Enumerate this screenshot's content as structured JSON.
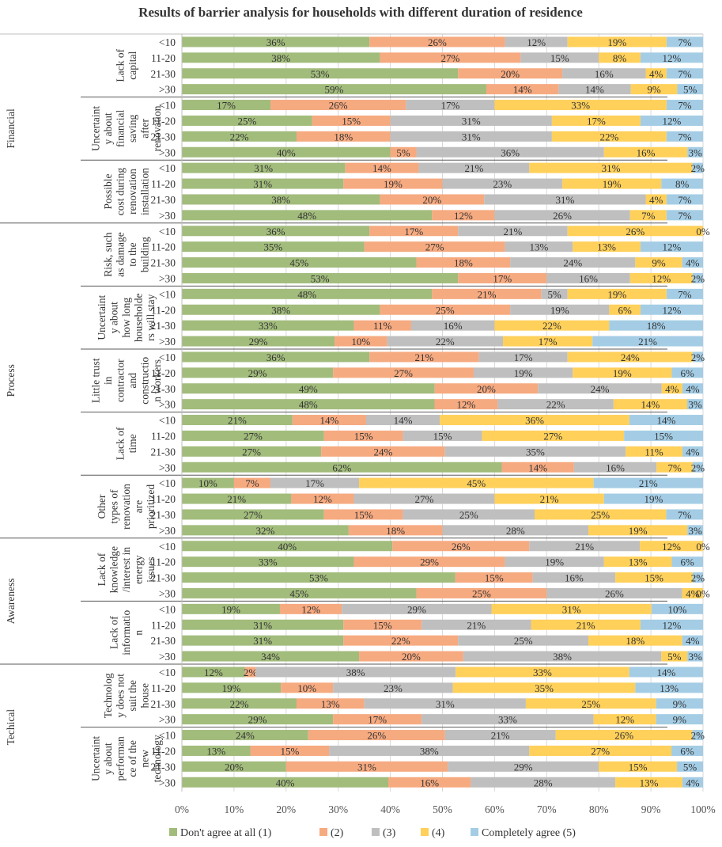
{
  "chart_data": {
    "type": "bar",
    "orientation": "horizontal-stacked-100",
    "title": "Results of barrier analysis for households with different duration of residence",
    "groups": [
      {
        "name": "Financial",
        "barriers": [
          {
            "label": "Lack of capital",
            "lines": [
              "Lack of",
              "capital"
            ],
            "rows": [
              {
                "cat": "<10",
                "values": [
                  36,
                  26,
                  12,
                  19,
                  7
                ]
              },
              {
                "cat": "11-20",
                "values": [
                  38,
                  27,
                  15,
                  8,
                  12
                ]
              },
              {
                "cat": "21-30",
                "values": [
                  53,
                  20,
                  16,
                  4,
                  7
                ]
              },
              {
                "cat": ">30",
                "values": [
                  59,
                  14,
                  14,
                  9,
                  5
                ]
              }
            ]
          },
          {
            "label": "Uncertainty about financial saving after renovation",
            "lines": [
              "Uncertaint",
              "y about",
              "financial",
              "saving",
              "after",
              "renovation"
            ],
            "rows": [
              {
                "cat": "<10",
                "values": [
                  17,
                  26,
                  17,
                  33,
                  7
                ]
              },
              {
                "cat": "11-20",
                "values": [
                  25,
                  15,
                  31,
                  17,
                  12
                ]
              },
              {
                "cat": "21-30",
                "values": [
                  22,
                  18,
                  31,
                  22,
                  7
                ]
              },
              {
                "cat": ">30",
                "values": [
                  40,
                  5,
                  36,
                  16,
                  3
                ]
              }
            ]
          },
          {
            "label": "Possible cost during renovation/installation",
            "lines": [
              "Possible",
              "cost during",
              "renovation",
              "installation"
            ],
            "rows": [
              {
                "cat": "<10",
                "values": [
                  31,
                  14,
                  21,
                  31,
                  2
                ]
              },
              {
                "cat": "11-20",
                "values": [
                  31,
                  19,
                  23,
                  19,
                  8
                ]
              },
              {
                "cat": "21-30",
                "values": [
                  38,
                  20,
                  31,
                  4,
                  7
                ]
              },
              {
                "cat": ">30",
                "values": [
                  48,
                  12,
                  26,
                  7,
                  7
                ]
              }
            ]
          }
        ]
      },
      {
        "name": "Process",
        "barriers": [
          {
            "label": "Risk, such as damage to the building",
            "lines": [
              "Risk, such",
              "as damage",
              "to the",
              "building"
            ],
            "rows": [
              {
                "cat": "<10",
                "values": [
                  36,
                  17,
                  21,
                  26,
                  0
                ]
              },
              {
                "cat": "11-20",
                "values": [
                  35,
                  27,
                  13,
                  13,
                  12
                ]
              },
              {
                "cat": "21-30",
                "values": [
                  45,
                  18,
                  24,
                  9,
                  4
                ]
              },
              {
                "cat": ">30",
                "values": [
                  53,
                  17,
                  16,
                  12,
                  2
                ]
              }
            ]
          },
          {
            "label": "Uncertainty about how long householders will stay",
            "lines": [
              "Uncertaint",
              "y about",
              "how long",
              "householde",
              "rs will stay"
            ],
            "rows": [
              {
                "cat": "<10",
                "values": [
                  48,
                  21,
                  5,
                  19,
                  7
                ]
              },
              {
                "cat": "11-20",
                "values": [
                  38,
                  25,
                  19,
                  6,
                  12
                ]
              },
              {
                "cat": "21-30",
                "values": [
                  33,
                  11,
                  16,
                  22,
                  18
                ]
              },
              {
                "cat": ">30",
                "values": [
                  29,
                  10,
                  22,
                  17,
                  21
                ]
              }
            ]
          },
          {
            "label": "Little trust in contractor and construction workers",
            "lines": [
              "Little trust",
              "in",
              "contractor",
              "and",
              "constructio",
              "n workers"
            ],
            "rows": [
              {
                "cat": "<10",
                "values": [
                  36,
                  21,
                  17,
                  24,
                  2
                ]
              },
              {
                "cat": "11-20",
                "values": [
                  29,
                  27,
                  19,
                  19,
                  6
                ]
              },
              {
                "cat": "21-30",
                "values": [
                  49,
                  20,
                  24,
                  4,
                  4
                ]
              },
              {
                "cat": ">30",
                "values": [
                  48,
                  12,
                  22,
                  14,
                  3
                ]
              }
            ]
          },
          {
            "label": "Lack of time",
            "lines": [
              "Lack of",
              "time"
            ],
            "rows": [
              {
                "cat": "<10",
                "values": [
                  21,
                  14,
                  14,
                  36,
                  14
                ]
              },
              {
                "cat": "11-20",
                "values": [
                  27,
                  15,
                  15,
                  27,
                  15
                ]
              },
              {
                "cat": "21-30",
                "values": [
                  27,
                  24,
                  35,
                  11,
                  4
                ]
              },
              {
                "cat": ">30",
                "values": [
                  62,
                  14,
                  16,
                  7,
                  2
                ]
              }
            ]
          },
          {
            "label": "Other types of renovation are prioritized",
            "lines": [
              "Other",
              "types of",
              "renovation",
              "are",
              "prioritized"
            ],
            "rows": [
              {
                "cat": "<10",
                "values": [
                  10,
                  7,
                  17,
                  45,
                  21
                ]
              },
              {
                "cat": "11-20",
                "values": [
                  21,
                  12,
                  27,
                  21,
                  19
                ]
              },
              {
                "cat": "21-30",
                "values": [
                  27,
                  15,
                  25,
                  25,
                  7
                ]
              },
              {
                "cat": ">30",
                "values": [
                  32,
                  18,
                  28,
                  19,
                  3
                ]
              }
            ]
          }
        ]
      },
      {
        "name": "Awareness",
        "barriers": [
          {
            "label": "Lack of knowledge/interest in energy issues",
            "lines": [
              "Lack of",
              "knowledge",
              "/interest in",
              "energy",
              "issues"
            ],
            "rows": [
              {
                "cat": "<10",
                "values": [
                  40,
                  26,
                  21,
                  12,
                  0
                ]
              },
              {
                "cat": "11-20",
                "values": [
                  33,
                  29,
                  19,
                  13,
                  6
                ]
              },
              {
                "cat": "21-30",
                "values": [
                  53,
                  15,
                  16,
                  15,
                  2
                ]
              },
              {
                "cat": ">30",
                "values": [
                  45,
                  25,
                  26,
                  4,
                  0
                ]
              }
            ]
          },
          {
            "label": "Lack of information",
            "lines": [
              "Lack of",
              "informatio",
              "n"
            ],
            "rows": [
              {
                "cat": "<10",
                "values": [
                  19,
                  12,
                  29,
                  31,
                  10
                ]
              },
              {
                "cat": "11-20",
                "values": [
                  31,
                  15,
                  21,
                  21,
                  12
                ]
              },
              {
                "cat": "21-30",
                "values": [
                  31,
                  22,
                  25,
                  18,
                  4
                ]
              },
              {
                "cat": ">30",
                "values": [
                  34,
                  20,
                  38,
                  5,
                  3
                ]
              }
            ]
          }
        ]
      },
      {
        "name": "Techical",
        "barriers": [
          {
            "label": "Technology does not suit the house",
            "lines": [
              "Technolog",
              "y does not",
              "suit the",
              "house"
            ],
            "rows": [
              {
                "cat": "<10",
                "values": [
                  12,
                  2,
                  38,
                  33,
                  14
                ]
              },
              {
                "cat": "11-20",
                "values": [
                  19,
                  10,
                  23,
                  35,
                  13
                ]
              },
              {
                "cat": "21-30",
                "values": [
                  22,
                  13,
                  31,
                  25,
                  9
                ]
              },
              {
                "cat": ">30",
                "values": [
                  29,
                  17,
                  33,
                  12,
                  9
                ]
              }
            ]
          },
          {
            "label": "Uncertainty about performance of the new technology",
            "lines": [
              "Uncertaint",
              "y about",
              "performan",
              "ce of the",
              "new",
              "technology"
            ],
            "rows": [
              {
                "cat": "<10",
                "values": [
                  24,
                  26,
                  21,
                  26,
                  2
                ]
              },
              {
                "cat": "11-20",
                "values": [
                  13,
                  15,
                  38,
                  27,
                  6
                ]
              },
              {
                "cat": "21-30",
                "values": [
                  20,
                  31,
                  29,
                  15,
                  5
                ]
              },
              {
                "cat": ">30",
                "values": [
                  40,
                  16,
                  28,
                  13,
                  4
                ]
              }
            ]
          }
        ]
      }
    ],
    "series": [
      {
        "name": "Don't agree at all (1)",
        "color": "#A2BC7C"
      },
      {
        "name": "(2)",
        "color": "#F6AA80"
      },
      {
        "name": "(3)",
        "color": "#BFBFBF"
      },
      {
        "name": "(4)",
        "color": "#FFD05A"
      },
      {
        "name": "Completely agree (5)",
        "color": "#A4CDE5"
      }
    ],
    "xaxis": {
      "ticks": [
        "0%",
        "10%",
        "20%",
        "30%",
        "40%",
        "50%",
        "60%",
        "70%",
        "80%",
        "90%",
        "100%"
      ],
      "range": [
        0,
        100
      ]
    },
    "legend": "bottom"
  }
}
